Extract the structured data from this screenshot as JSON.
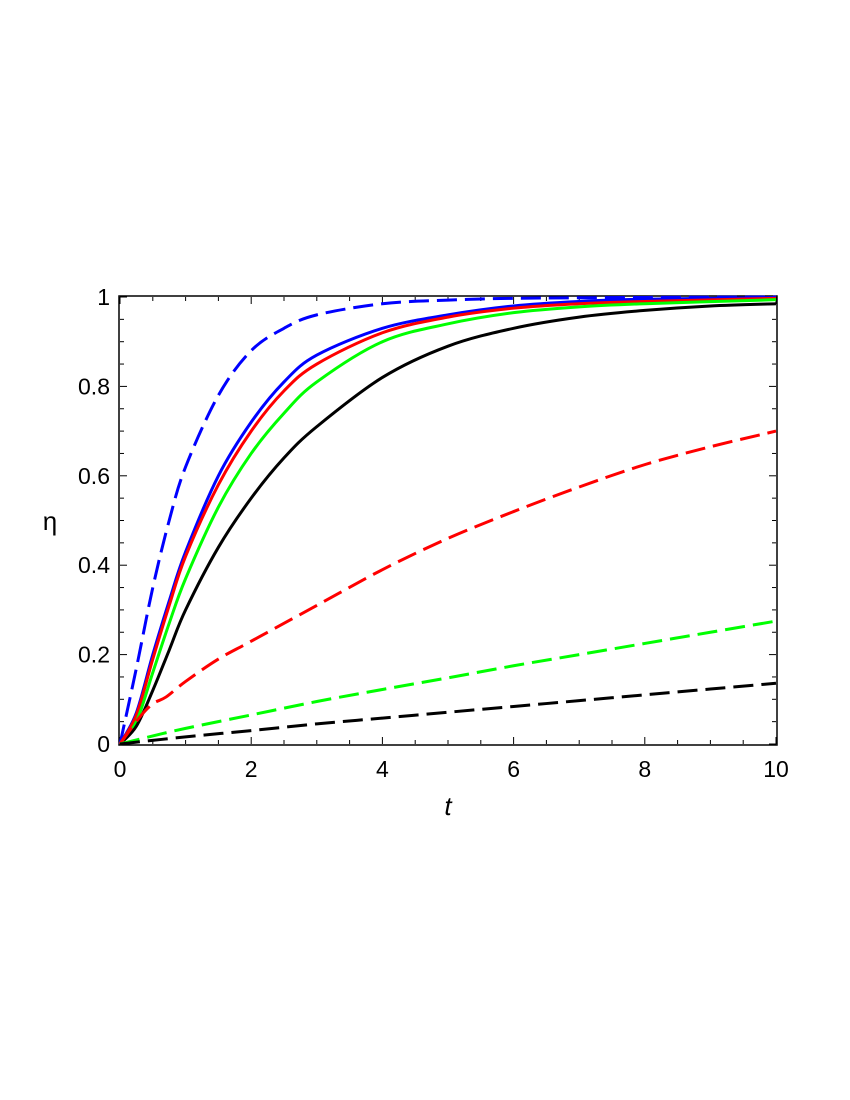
{
  "chart_data": {
    "type": "line",
    "title": "",
    "xlabel": "t",
    "ylabel": "η",
    "xlim": [
      0,
      10
    ],
    "ylim": [
      0,
      1
    ],
    "xticks": [
      0,
      2,
      4,
      6,
      8,
      10
    ],
    "yticks": [
      0,
      0.2,
      0.4,
      0.6,
      0.8,
      1
    ],
    "xtick_labels": [
      "0",
      "2",
      "4",
      "6",
      "8",
      "10"
    ],
    "ytick_labels": [
      "0",
      "0.2",
      "0.4",
      "0.6",
      "0.8",
      "1"
    ],
    "grid": false,
    "legend": "none",
    "series": [
      {
        "color": "#0000ff",
        "style": "dashed",
        "x": [
          0,
          0.25,
          0.5,
          0.75,
          1,
          1.5,
          2,
          2.5,
          3,
          4,
          5,
          6,
          8,
          10
        ],
        "y": [
          0,
          0.17,
          0.35,
          0.5,
          0.62,
          0.78,
          0.88,
          0.93,
          0.96,
          0.985,
          0.993,
          0.997,
          0.999,
          1.0
        ]
      },
      {
        "color": "#0000ff",
        "style": "solid",
        "x": [
          0,
          0.25,
          0.5,
          0.75,
          1,
          1.5,
          2,
          2.5,
          3,
          4,
          5,
          6,
          7,
          8,
          10
        ],
        "y": [
          0,
          0.07,
          0.2,
          0.32,
          0.43,
          0.6,
          0.72,
          0.81,
          0.87,
          0.93,
          0.96,
          0.98,
          0.99,
          0.995,
          0.999
        ]
      },
      {
        "color": "#ff0000",
        "style": "solid",
        "x": [
          0,
          0.25,
          0.5,
          0.75,
          1,
          1.5,
          2,
          2.5,
          3,
          4,
          5,
          6,
          7,
          8,
          10
        ],
        "y": [
          0,
          0.065,
          0.19,
          0.31,
          0.42,
          0.58,
          0.7,
          0.79,
          0.85,
          0.92,
          0.955,
          0.975,
          0.985,
          0.99,
          0.997
        ]
      },
      {
        "color": "#00ff00",
        "style": "solid",
        "x": [
          0,
          0.25,
          0.5,
          0.75,
          1,
          1.5,
          2,
          2.5,
          3,
          4,
          5,
          6,
          7,
          8,
          10
        ],
        "y": [
          0,
          0.05,
          0.16,
          0.27,
          0.37,
          0.53,
          0.65,
          0.74,
          0.81,
          0.9,
          0.94,
          0.965,
          0.978,
          0.985,
          0.994
        ]
      },
      {
        "color": "#000000",
        "style": "solid",
        "x": [
          0,
          0.25,
          0.5,
          0.75,
          1,
          1.5,
          2,
          2.5,
          3,
          4,
          5,
          6,
          7,
          8,
          9,
          10
        ],
        "y": [
          0,
          0.04,
          0.12,
          0.21,
          0.3,
          0.44,
          0.55,
          0.64,
          0.71,
          0.82,
          0.89,
          0.93,
          0.955,
          0.97,
          0.98,
          0.985
        ]
      },
      {
        "color": "#ff0000",
        "style": "dashed",
        "x": [
          0,
          0.3,
          0.5,
          0.7,
          1,
          1.5,
          2,
          3,
          4,
          5,
          6,
          7,
          8,
          9,
          10
        ],
        "y": [
          0,
          0.06,
          0.09,
          0.105,
          0.14,
          0.19,
          0.23,
          0.31,
          0.39,
          0.46,
          0.52,
          0.575,
          0.625,
          0.665,
          0.7
        ]
      },
      {
        "color": "#00ff00",
        "style": "dashed",
        "x": [
          0,
          0.5,
          1,
          2,
          3,
          4,
          5,
          6,
          7,
          8,
          9,
          10
        ],
        "y": [
          0,
          0.018,
          0.035,
          0.065,
          0.095,
          0.122,
          0.148,
          0.175,
          0.2,
          0.225,
          0.25,
          0.275
        ]
      },
      {
        "color": "#000000",
        "style": "dashed",
        "x": [
          0,
          1,
          2,
          3,
          4,
          5,
          6,
          7,
          8,
          9,
          10
        ],
        "y": [
          0,
          0.016,
          0.03,
          0.045,
          0.058,
          0.071,
          0.084,
          0.097,
          0.11,
          0.123,
          0.136
        ]
      }
    ]
  }
}
